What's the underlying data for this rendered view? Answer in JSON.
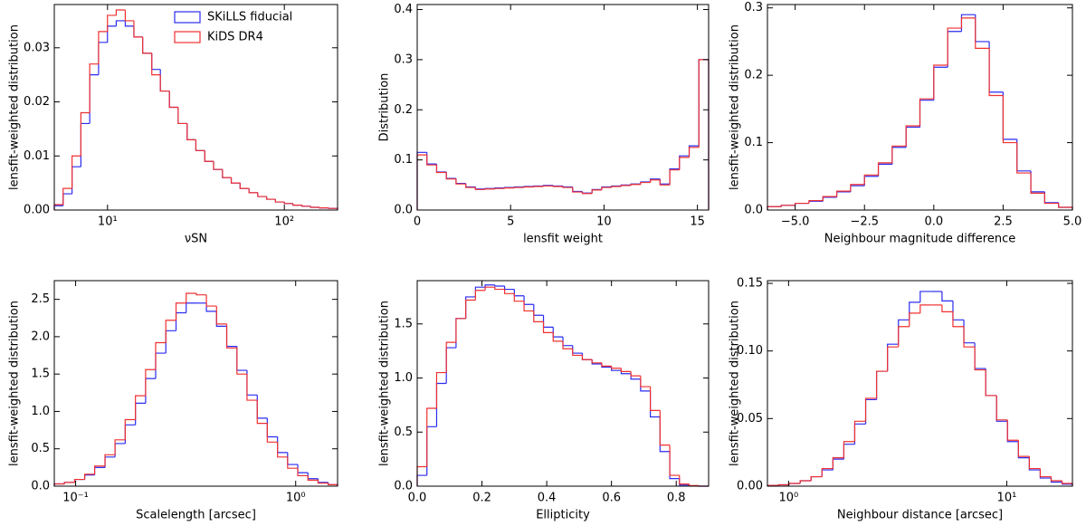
{
  "chart_data": [
    {
      "type": "histogram",
      "xscale": "log",
      "xlabel": "νSN",
      "ylabel": "lensfit-weighted distribution",
      "legend": "upper right",
      "bins": [
        5,
        5.61,
        6.3,
        7.07,
        7.93,
        8.9,
        9.99,
        11.2,
        12.6,
        14.1,
        15.8,
        17.8,
        19.9,
        22.4,
        25.1,
        28.2,
        31.6,
        35.5,
        39.8,
        44.7,
        50.1,
        56.2,
        63.1,
        70.8,
        79.4,
        89.1,
        100,
        112,
        126,
        141,
        158,
        178,
        200
      ],
      "series": [
        {
          "name": "SKiLLS fiducial",
          "color": "#2b2bf0",
          "values": [
            0.0008,
            0.003,
            0.008,
            0.016,
            0.025,
            0.031,
            0.034,
            0.035,
            0.034,
            0.032,
            0.029,
            0.026,
            0.022,
            0.019,
            0.016,
            0.013,
            0.011,
            0.009,
            0.0075,
            0.006,
            0.005,
            0.004,
            0.0032,
            0.0025,
            0.002,
            0.0015,
            0.0012,
            0.0009,
            0.0007,
            0.0005,
            0.0004,
            0.0003
          ]
        },
        {
          "name": "KiDS DR4",
          "color": "#f03030",
          "values": [
            0.001,
            0.004,
            0.01,
            0.018,
            0.027,
            0.033,
            0.036,
            0.037,
            0.035,
            0.032,
            0.029,
            0.025,
            0.022,
            0.019,
            0.016,
            0.013,
            0.011,
            0.009,
            0.0075,
            0.006,
            0.005,
            0.004,
            0.0032,
            0.0025,
            0.002,
            0.0015,
            0.0012,
            0.0009,
            0.0007,
            0.0005,
            0.0004,
            0.0003
          ]
        }
      ],
      "xlim": [
        5,
        200
      ],
      "xticks": [
        {
          "value": 10,
          "label": "10¹"
        },
        {
          "value": 100,
          "label": "10²"
        }
      ],
      "ylim": [
        0,
        0.038
      ],
      "yticks": [
        {
          "value": 0,
          "label": "0.00"
        },
        {
          "value": 0.01,
          "label": "0.01"
        },
        {
          "value": 0.02,
          "label": "0.02"
        },
        {
          "value": 0.03,
          "label": "0.03"
        }
      ]
    },
    {
      "type": "histogram",
      "xlabel": "lensfit weight",
      "ylabel": "Distribution",
      "bins": [
        0,
        0.52,
        1.04,
        1.56,
        2.08,
        2.6,
        3.12,
        3.64,
        4.16,
        4.68,
        5.2,
        5.72,
        6.24,
        6.76,
        7.28,
        7.8,
        8.32,
        8.84,
        9.36,
        9.88,
        10.4,
        10.92,
        11.44,
        11.96,
        12.48,
        13,
        13.52,
        14.04,
        14.56,
        15.08,
        15.6
      ],
      "series": [
        {
          "color": "#2b2bf0",
          "values": [
            0.115,
            0.092,
            0.076,
            0.063,
            0.053,
            0.046,
            0.042,
            0.043,
            0.044,
            0.045,
            0.046,
            0.047,
            0.048,
            0.049,
            0.048,
            0.046,
            0.037,
            0.034,
            0.041,
            0.046,
            0.048,
            0.05,
            0.052,
            0.056,
            0.062,
            0.052,
            0.082,
            0.108,
            0.128,
            0.3
          ]
        },
        {
          "color": "#f03030",
          "values": [
            0.11,
            0.09,
            0.075,
            0.062,
            0.052,
            0.045,
            0.041,
            0.042,
            0.043,
            0.044,
            0.045,
            0.046,
            0.047,
            0.048,
            0.047,
            0.045,
            0.036,
            0.033,
            0.04,
            0.045,
            0.047,
            0.049,
            0.051,
            0.055,
            0.06,
            0.05,
            0.08,
            0.105,
            0.125,
            0.3
          ]
        }
      ],
      "xlim": [
        0,
        15.6
      ],
      "xticks": [
        0,
        5,
        10,
        15
      ],
      "ylim": [
        0,
        0.41
      ],
      "yticks": [
        {
          "value": 0,
          "label": "0.0"
        },
        0.1,
        0.2,
        0.3,
        0.4
      ]
    },
    {
      "type": "histogram",
      "xlabel": "Neighbour magnitude difference",
      "ylabel": "lensfit-weighted distribution",
      "bins": [
        -6,
        -5.5,
        -5,
        -4.5,
        -4,
        -3.5,
        -3,
        -2.5,
        -2,
        -1.5,
        -1,
        -0.5,
        0,
        0.5,
        1,
        1.5,
        2,
        2.5,
        3,
        3.5,
        4,
        4.5,
        5
      ],
      "series": [
        {
          "color": "#2b2bf0",
          "values": [
            0.005,
            0.007,
            0.01,
            0.013,
            0.019,
            0.027,
            0.036,
            0.05,
            0.068,
            0.093,
            0.123,
            0.163,
            0.212,
            0.265,
            0.29,
            0.25,
            0.175,
            0.105,
            0.058,
            0.027,
            0.011,
            0.004
          ]
        },
        {
          "color": "#f03030",
          "values": [
            0.005,
            0.007,
            0.01,
            0.014,
            0.02,
            0.028,
            0.038,
            0.052,
            0.07,
            0.095,
            0.125,
            0.165,
            0.215,
            0.27,
            0.285,
            0.24,
            0.17,
            0.1,
            0.055,
            0.025,
            0.01,
            0.004
          ]
        }
      ],
      "xlim": [
        -6,
        5
      ],
      "xticks": [
        {
          "value": -5,
          "label": "−5.0"
        },
        {
          "value": -2.5,
          "label": "−2.5"
        },
        {
          "value": 0,
          "label": "0.0"
        },
        2.5,
        {
          "value": 5,
          "label": "5.0"
        }
      ],
      "ylim": [
        0,
        0.305
      ],
      "yticks": [
        {
          "value": 0,
          "label": "0.0"
        },
        0.1,
        0.2,
        0.3
      ]
    },
    {
      "type": "histogram",
      "xscale": "log",
      "xlabel": "Scalelength [arcsec]",
      "ylabel": "lensfit-weighted distribution",
      "bins": [
        0.08,
        0.089,
        0.099,
        0.11,
        0.122,
        0.136,
        0.151,
        0.168,
        0.187,
        0.208,
        0.231,
        0.257,
        0.286,
        0.318,
        0.354,
        0.393,
        0.437,
        0.486,
        0.541,
        0.601,
        0.669,
        0.743,
        0.827,
        0.919,
        1.022,
        1.137,
        1.264,
        1.405,
        1.55
      ],
      "series": [
        {
          "color": "#2b2bf0",
          "values": [
            0.03,
            0.05,
            0.09,
            0.15,
            0.25,
            0.39,
            0.57,
            0.82,
            1.11,
            1.44,
            1.78,
            2.08,
            2.32,
            2.45,
            2.45,
            2.34,
            2.14,
            1.87,
            1.55,
            1.22,
            0.91,
            0.66,
            0.45,
            0.29,
            0.18,
            0.1,
            0.05,
            0.02
          ]
        },
        {
          "color": "#f03030",
          "values": [
            0.03,
            0.05,
            0.09,
            0.16,
            0.27,
            0.42,
            0.62,
            0.89,
            1.21,
            1.56,
            1.92,
            2.22,
            2.45,
            2.58,
            2.56,
            2.41,
            2.17,
            1.85,
            1.5,
            1.15,
            0.84,
            0.59,
            0.39,
            0.24,
            0.14,
            0.08,
            0.04,
            0.02
          ]
        }
      ],
      "xlim": [
        0.08,
        1.55
      ],
      "xticks": [
        {
          "value": 0.1,
          "label": "10⁻¹"
        },
        {
          "value": 1,
          "label": "10⁰"
        }
      ],
      "ylim": [
        0,
        2.75
      ],
      "yticks": [
        {
          "value": 0,
          "label": "0.0"
        },
        0.5,
        {
          "value": 1,
          "label": "1.0"
        },
        1.5,
        {
          "value": 2,
          "label": "2.0"
        },
        2.5
      ]
    },
    {
      "type": "histogram",
      "xlabel": "Ellipticity",
      "ylabel": "lensfit-weighted distribution",
      "bins": [
        0,
        0.03,
        0.06,
        0.09,
        0.12,
        0.15,
        0.18,
        0.21,
        0.24,
        0.27,
        0.3,
        0.33,
        0.36,
        0.39,
        0.42,
        0.45,
        0.48,
        0.51,
        0.54,
        0.57,
        0.6,
        0.63,
        0.66,
        0.69,
        0.72,
        0.75,
        0.78,
        0.81,
        0.84,
        0.87,
        0.9
      ],
      "series": [
        {
          "color": "#2b2bf0",
          "values": [
            0.1,
            0.55,
            0.95,
            1.28,
            1.55,
            1.75,
            1.84,
            1.86,
            1.85,
            1.82,
            1.76,
            1.68,
            1.58,
            1.47,
            1.38,
            1.3,
            1.23,
            1.17,
            1.13,
            1.1,
            1.07,
            1.04,
            0.99,
            0.88,
            0.64,
            0.32,
            0.07,
            0.01,
            0.003,
            0
          ]
        },
        {
          "color": "#f03030",
          "values": [
            0.18,
            0.72,
            1.05,
            1.33,
            1.55,
            1.72,
            1.81,
            1.84,
            1.82,
            1.78,
            1.71,
            1.62,
            1.52,
            1.42,
            1.34,
            1.27,
            1.21,
            1.17,
            1.14,
            1.11,
            1.09,
            1.06,
            1.02,
            0.92,
            0.7,
            0.38,
            0.1,
            0.02,
            0.005,
            0
          ]
        }
      ],
      "xlim": [
        0,
        0.9
      ],
      "xticks": [
        {
          "value": 0,
          "label": "0.0"
        },
        0.2,
        0.4,
        0.6,
        0.8
      ],
      "ylim": [
        0,
        1.9
      ],
      "yticks": [
        {
          "value": 0,
          "label": "0.0"
        },
        0.5,
        {
          "value": 1,
          "label": "1.0"
        },
        1.5
      ]
    },
    {
      "type": "histogram",
      "xscale": "log",
      "xlabel": "Neighbour distance [arcsec]",
      "ylabel": "lensfit-weighted distribution",
      "bins": [
        0.8,
        0.898,
        1.007,
        1.13,
        1.268,
        1.423,
        1.597,
        1.792,
        2.01,
        2.256,
        2.531,
        2.84,
        3.187,
        3.576,
        4.012,
        4.502,
        5.051,
        5.667,
        6.359,
        7.135,
        8.006,
        8.983,
        10.08,
        11.31,
        12.69,
        14.24,
        15.98,
        17.93,
        20
      ],
      "series": [
        {
          "color": "#2b2bf0",
          "values": [
            0.0005,
            0.001,
            0.002,
            0.004,
            0.007,
            0.012,
            0.02,
            0.031,
            0.046,
            0.064,
            0.085,
            0.105,
            0.123,
            0.136,
            0.144,
            0.144,
            0.137,
            0.123,
            0.106,
            0.087,
            0.067,
            0.048,
            0.033,
            0.021,
            0.012,
            0.006,
            0.003,
            0.0015
          ]
        },
        {
          "color": "#f03030",
          "values": [
            0.0005,
            0.001,
            0.002,
            0.004,
            0.007,
            0.013,
            0.021,
            0.033,
            0.048,
            0.065,
            0.085,
            0.103,
            0.118,
            0.128,
            0.134,
            0.134,
            0.129,
            0.118,
            0.103,
            0.086,
            0.067,
            0.049,
            0.034,
            0.022,
            0.013,
            0.007,
            0.004,
            0.002
          ]
        }
      ],
      "xlim": [
        0.8,
        20
      ],
      "xticks": [
        {
          "value": 1,
          "label": "10⁰"
        },
        {
          "value": 10,
          "label": "10¹"
        }
      ],
      "ylim": [
        0,
        0.152
      ],
      "yticks": [
        {
          "value": 0,
          "label": "0.00"
        },
        {
          "value": 0.05,
          "label": "0.05"
        },
        {
          "value": 0.1,
          "label": "0.10"
        },
        {
          "value": 0.15,
          "label": "0.15"
        }
      ]
    }
  ]
}
